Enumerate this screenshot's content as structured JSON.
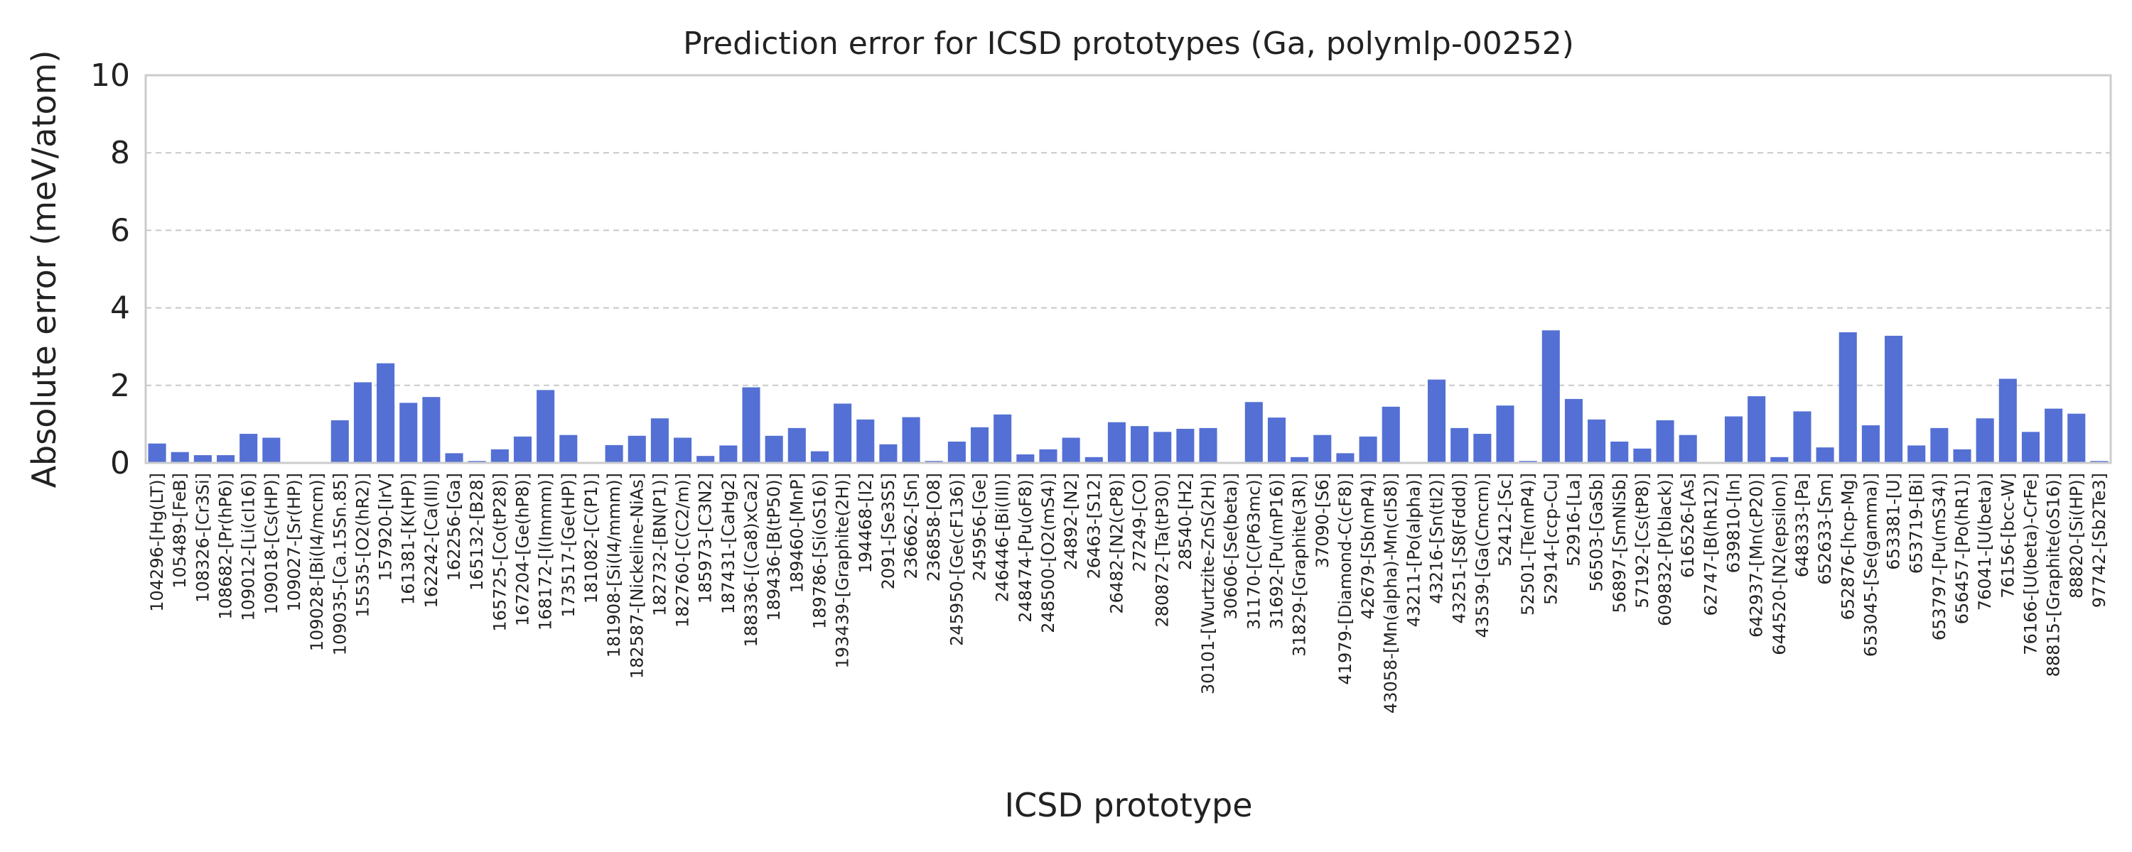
{
  "chart_data": {
    "type": "bar",
    "title": "Prediction error for ICSD prototypes (Ga, polymlp-00252)",
    "xlabel": "ICSD prototype",
    "ylabel": "Absolute error (meV/atom)",
    "ylim": [
      0,
      10
    ],
    "yticks": [
      0,
      2,
      4,
      6,
      8,
      10
    ],
    "grid": "horizontal dashed",
    "bar_color": "#5470d4",
    "categories": [
      "104296-[Hg(LT)]",
      "105489-[FeB]",
      "108326-[Cr3Si]",
      "108682-[Pr(hP6)]",
      "109012-[Li(cI16)]",
      "109018-[Cs(HP)]",
      "109027-[Sr(HP)]",
      "109028-[Bi(I4/mcm)]",
      "109035-[Ca.15Sn.85]",
      "15535-[O2(hR2)]",
      "157920-[IrV]",
      "161381-[K(HP)]",
      "162242-[Ca(III)]",
      "162256-[Ga]",
      "165132-[B28]",
      "165725-[Co(tP28)]",
      "167204-[Ge(hP8)]",
      "168172-[I(Immm)]",
      "173517-[Ge(HP)]",
      "181082-[C(P1)]",
      "181908-[Si(I4/mmm)]",
      "182587-[Nickeline-NiAs]",
      "182732-[BN(P1)]",
      "182760-[C(C2/m)]",
      "185973-[C3N2]",
      "187431-[CaHg2]",
      "188336-[(Ca8)xCa2]",
      "189436-[B(tP50)]",
      "189460-[MnP]",
      "189786-[Si(oS16)]",
      "193439-[Graphite(2H)]",
      "194468-[I2]",
      "2091-[Se3S5]",
      "236662-[Sn]",
      "236858-[O8]",
      "245950-[Ge(cF136)]",
      "245956-[Ge]",
      "246446-[Bi(III)]",
      "248474-[Pu(oF8)]",
      "248500-[O2(mS4)]",
      "24892-[N2]",
      "26463-[S12]",
      "26482-[N2(cP8)]",
      "27249-[CO]",
      "280872-[Ta(tP30)]",
      "28540-[H2]",
      "30101-[Wurtzite-ZnS(2H)]",
      "30606-[Se(beta)]",
      "31170-[C(P63mc)]",
      "31692-[Pu(mP16)]",
      "31829-[Graphite(3R)]",
      "37090-[S6]",
      "41979-[Diamond-C(cF8)]",
      "42679-[Sb(mP4)]",
      "43058-[Mn(alpha)-Mn(cI58)]",
      "43211-[Po(alpha)]",
      "43216-[Sn(tI2)]",
      "43251-[S8(Fddd)]",
      "43539-[Ga(Cmcm)]",
      "52412-[Sc]",
      "52501-[Te(mP4)]",
      "52914-[ccp-Cu]",
      "52916-[La]",
      "56503-[GaSb]",
      "56897-[SmNiSb]",
      "57192-[Cs(tP8)]",
      "609832-[P(black)]",
      "616526-[As]",
      "62747-[B(hR12)]",
      "639810-[In]",
      "642937-[Mn(cP20)]",
      "644520-[N2(epsilon)]",
      "648333-[Pa]",
      "652633-[Sm]",
      "652876-[hcp-Mg]",
      "653045-[Se(gamma)]",
      "653381-[U]",
      "653719-[Bi]",
      "653797-[Pu(mS34)]",
      "656457-[Po(hR1)]",
      "76041-[U(beta)]",
      "76156-[bcc-W]",
      "76166-[U(beta)-CrFe]",
      "88815-[Graphite(oS16)]",
      "88820-[Si(HP)]",
      "97742-[Sb2Te3]"
    ],
    "values": [
      0.5,
      0.28,
      0.2,
      0.2,
      0.75,
      0.65,
      0.02,
      0.02,
      1.1,
      2.08,
      2.57,
      1.55,
      1.7,
      0.25,
      0.05,
      0.35,
      0.68,
      1.88,
      0.72,
      0.02,
      0.46,
      0.7,
      1.15,
      0.65,
      0.18,
      0.45,
      1.95,
      0.7,
      0.9,
      0.3,
      1.53,
      1.12,
      0.48,
      1.18,
      0.05,
      0.55,
      0.92,
      1.25,
      0.22,
      0.35,
      0.65,
      0.15,
      1.05,
      0.95,
      0.8,
      0.88,
      0.9,
      0.02,
      1.57,
      1.17,
      0.15,
      0.72,
      0.25,
      0.68,
      1.45,
      0.02,
      2.15,
      0.9,
      0.75,
      1.48,
      0.05,
      3.42,
      1.65,
      1.12,
      0.55,
      0.37,
      1.1,
      0.72,
      0.02,
      1.2,
      1.72,
      0.15,
      1.33,
      0.4,
      3.37,
      0.97,
      3.28,
      0.45,
      0.9,
      0.35,
      1.15,
      2.17,
      0.8,
      1.4,
      1.27,
      0.05
    ]
  }
}
